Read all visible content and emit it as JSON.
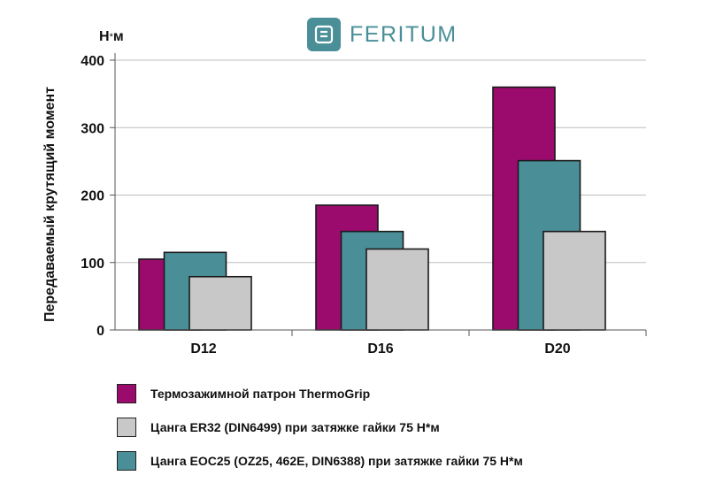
{
  "brand": {
    "name": "FERITUM",
    "color": "#4a8f98"
  },
  "chart_data": {
    "type": "bar",
    "unit_label": "Н*м",
    "ylabel": "Передаваемый крутящий момент",
    "xlabel": "",
    "ylim": [
      0,
      400
    ],
    "yticks": [
      0,
      100,
      200,
      300,
      400
    ],
    "grid": true,
    "categories": [
      "D12",
      "D16",
      "D20"
    ],
    "series": [
      {
        "name": "Термозажимной патрон ThermoGrip",
        "color": "#9b0b6e",
        "values": [
          105,
          185,
          360
        ]
      },
      {
        "name": "Цанга EOC25 (OZ25, 462E, DIN6388) при затяжке гайки 75 Н*м",
        "color": "#4a8f98",
        "values": [
          115,
          146,
          251
        ]
      },
      {
        "name": "Цанга ER32 (DIN6499) при затяжке гайки 75 Н*м",
        "color": "#c8c8c8",
        "values": [
          79,
          120,
          146
        ]
      }
    ],
    "legend_order": [
      0,
      2,
      1
    ]
  }
}
